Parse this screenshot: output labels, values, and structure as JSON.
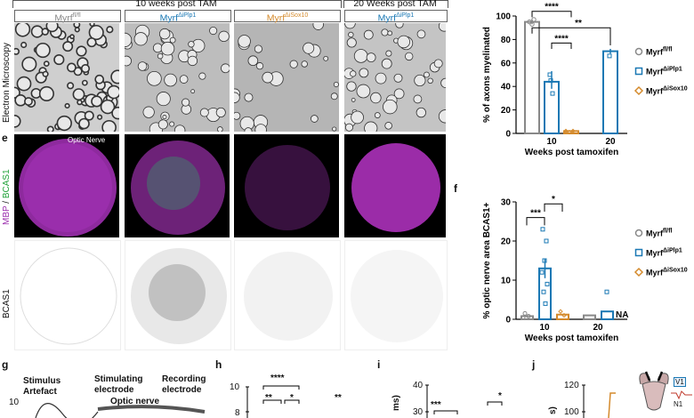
{
  "headers": {
    "weeks10": "10 weeks post TAM",
    "weeks20": "20 Weeks post TAM"
  },
  "columns": [
    {
      "name": "Myrf",
      "sup": "fl/fl",
      "color": "#888888"
    },
    {
      "name": "Myrf",
      "sup": "ΔiPlp1",
      "color": "#1a78b4"
    },
    {
      "name": "Myrf",
      "sup": "ΔiSox10",
      "color": "#d48a2c"
    },
    {
      "name": "Myrf",
      "sup": "ΔiPlp1",
      "color": "#1a78b4"
    }
  ],
  "row_labels": {
    "em": "Electron Microscopy",
    "mbp": "MBP",
    "slash": " / ",
    "bcas1": "BCAS1",
    "bcas1_gray": "BCAS1",
    "optic_nerve": "Optic Nerve"
  },
  "panel_letters": {
    "e": "e",
    "f": "f",
    "g": "g",
    "h": "h",
    "i": "i",
    "j": "j"
  },
  "legend": [
    {
      "name": "Myrf",
      "sup": "fl/fl",
      "color": "#888888",
      "marker": "circle"
    },
    {
      "name": "Myrf",
      "sup": "ΔiPlp1",
      "color": "#1a78b4",
      "marker": "square"
    },
    {
      "name": "Myrf",
      "sup": "ΔiSox10",
      "color": "#d48a2c",
      "marker": "diamond"
    }
  ],
  "chart_data": [
    {
      "type": "bar",
      "ylabel": "% of axons myelinated",
      "xlabel": "Weeks post tamoxifen",
      "ylim": [
        0,
        100
      ],
      "yticks": [
        0,
        20,
        40,
        60,
        80,
        100
      ],
      "categories": [
        "10",
        "20"
      ],
      "bars": [
        {
          "group": "10",
          "series": "fl/fl",
          "value": 95
        },
        {
          "group": "10",
          "series": "ΔiPlp1",
          "value": 44
        },
        {
          "group": "10",
          "series": "ΔiSox10",
          "value": 2
        },
        {
          "group": "20",
          "series": "ΔiPlp1",
          "value": 70
        }
      ],
      "significance": [
        "****",
        "****",
        "**"
      ]
    },
    {
      "type": "bar",
      "ylabel": "% optic nerve area BCAS1+",
      "xlabel": "Weeks post tamoxifen",
      "ylim": [
        0,
        30
      ],
      "yticks": [
        0,
        10,
        20,
        30
      ],
      "categories": [
        "10",
        "20"
      ],
      "bars": [
        {
          "group": "10",
          "series": "fl/fl",
          "value": 0.8
        },
        {
          "group": "10",
          "series": "ΔiPlp1",
          "value": 13
        },
        {
          "group": "10",
          "series": "ΔiSox10",
          "value": 1.2
        },
        {
          "group": "20",
          "series": "fl/fl",
          "value": 1
        },
        {
          "group": "20",
          "series": "ΔiPlp1",
          "value": 2
        }
      ],
      "significance": [
        "***",
        "*"
      ],
      "na_label": "NA"
    }
  ],
  "bottom": {
    "stimulus": "Stimulus",
    "artefact": "Artefact",
    "stimulating": "Stimulating",
    "electrode1": "electrode",
    "optic": "Optic nerve",
    "recording": "Recording",
    "electrode2": "electrode",
    "h_sig1": "****",
    "h_sig2": "**",
    "h_sig3": "*",
    "h_sig4": "**",
    "h_tick10": "10",
    "h_tick8": "8",
    "i_tick40": "40",
    "i_tick30": "30",
    "i_ylabel": "ms)",
    "i_sig1": "***",
    "i_sig2": "*",
    "j_tick120": "120",
    "j_tick100": "100",
    "j_ylabel": "s)",
    "g_tick10": "10",
    "v1": "V1",
    "n1": "N1"
  }
}
